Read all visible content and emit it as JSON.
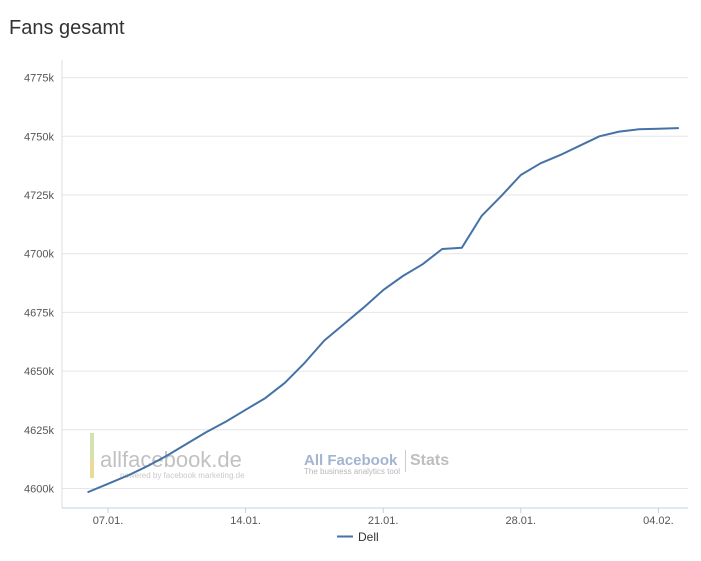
{
  "page_title": "Fans gesamt",
  "watermarks": {
    "left_main": "allfacebook.de",
    "left_sub": "powered by facebook marketing.de",
    "right_main": "All Facebook",
    "right_stats": "Stats",
    "right_sub": "The business analytics tool"
  },
  "chart_data": {
    "type": "line",
    "title": "Fans gesamt",
    "xlabel": "",
    "ylabel": "",
    "x_ticks": [
      "07.01.",
      "14.01.",
      "21.01.",
      "28.01.",
      "04.02."
    ],
    "y_ticks": [
      "4600k",
      "4625k",
      "4650k",
      "4675k",
      "4700k",
      "4725k",
      "4750k",
      "4775k"
    ],
    "ylim": [
      4595,
      4783
    ],
    "x_range_days": [
      5.55,
      36.8
    ],
    "grid": true,
    "legend_position": "bottom-center",
    "series": [
      {
        "name": "Dell",
        "color": "#4572A7",
        "points": [
          [
            6,
            4598.5
          ],
          [
            7,
            4602
          ],
          [
            8,
            4605.5
          ],
          [
            9,
            4609.5
          ],
          [
            10,
            4614
          ],
          [
            11,
            4619
          ],
          [
            12,
            4624
          ],
          [
            13,
            4628.5
          ],
          [
            14,
            4633.5
          ],
          [
            15,
            4638.5
          ],
          [
            16,
            4645
          ],
          [
            17,
            4653.5
          ],
          [
            18,
            4663
          ],
          [
            19,
            4670
          ],
          [
            20,
            4677
          ],
          [
            21,
            4684.5
          ],
          [
            22,
            4690.5
          ],
          [
            23,
            4695.5
          ],
          [
            24,
            4702
          ],
          [
            25,
            4702.5
          ],
          [
            26,
            4716
          ],
          [
            27,
            4724.5
          ],
          [
            28,
            4733.5
          ],
          [
            29,
            4738.5
          ],
          [
            30,
            4742
          ],
          [
            31,
            4746
          ],
          [
            32,
            4750
          ],
          [
            33,
            4752
          ],
          [
            34,
            4753
          ],
          [
            35,
            4753.2
          ],
          [
            36,
            4753.5
          ]
        ]
      }
    ]
  }
}
